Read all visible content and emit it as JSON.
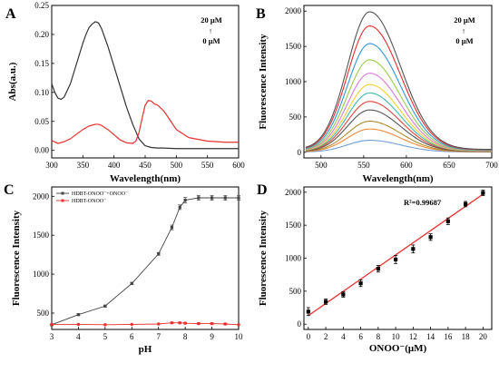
{
  "chart_data": [
    {
      "panel": "A",
      "type": "line",
      "xlabel": "Wavelength(nm)",
      "ylabel": "Abs(a.u.)",
      "xlim": [
        300,
        600
      ],
      "ylim": [
        -0.013,
        0.25
      ],
      "xticks": [
        300,
        350,
        400,
        450,
        500,
        550,
        600
      ],
      "yticks": [
        0.0,
        0.05,
        0.1,
        0.15,
        0.2,
        0.25
      ],
      "ytick_labels": [
        "0.00",
        "0.05",
        "0.10",
        "0.15",
        "0.20",
        "0.25"
      ],
      "annotation": {
        "top": "20 μM",
        "arrow": "↑",
        "bottom": "0 μM"
      },
      "series": [
        {
          "color": "#333333",
          "x": [
            300,
            305,
            310,
            315,
            320,
            330,
            340,
            350,
            355,
            360,
            365,
            370,
            375,
            380,
            385,
            390,
            400,
            410,
            420,
            430,
            440,
            450,
            460,
            470,
            480,
            500,
            550,
            600
          ],
          "y": [
            0.115,
            0.1,
            0.09,
            0.088,
            0.092,
            0.115,
            0.15,
            0.185,
            0.2,
            0.212,
            0.218,
            0.222,
            0.22,
            0.21,
            0.195,
            0.18,
            0.145,
            0.11,
            0.075,
            0.045,
            0.02,
            0.008,
            0.005,
            0.004,
            0.004,
            0.003,
            0.003,
            0.003
          ]
        },
        {
          "color": "#e8302e",
          "x": [
            300,
            310,
            320,
            330,
            340,
            350,
            360,
            370,
            375,
            380,
            390,
            400,
            410,
            420,
            430,
            435,
            440,
            445,
            450,
            455,
            460,
            465,
            470,
            480,
            490,
            500,
            520,
            550,
            580,
            600
          ],
          "y": [
            0.017,
            0.012,
            0.015,
            0.02,
            0.028,
            0.036,
            0.042,
            0.045,
            0.045,
            0.043,
            0.036,
            0.027,
            0.018,
            0.013,
            0.012,
            0.016,
            0.03,
            0.055,
            0.078,
            0.086,
            0.085,
            0.08,
            0.078,
            0.068,
            0.052,
            0.036,
            0.022,
            0.016,
            0.014,
            0.014
          ]
        }
      ]
    },
    {
      "panel": "B",
      "type": "line",
      "xlabel": "Wavelength(nm)",
      "ylabel": "Fluorescence Intensity",
      "xlim": [
        480,
        700
      ],
      "ylim": [
        -80,
        2080
      ],
      "xticks": [
        500,
        550,
        600,
        650,
        700
      ],
      "yticks": [
        0,
        500,
        1000,
        1500,
        2000
      ],
      "annotation": {
        "top": "20 μM",
        "arrow": "↑",
        "bottom": "0 μM"
      },
      "peak_wavelength": 557,
      "start_wavelength": 482,
      "end_wavelength": 700,
      "series": [
        {
          "color": "#6f9fd8",
          "peak": 170
        },
        {
          "color": "#f08a3c",
          "peak": 330
        },
        {
          "color": "#b08a2a",
          "peak": 440
        },
        {
          "color": "#555555",
          "peak": 600
        },
        {
          "color": "#e0453c",
          "peak": 720
        },
        {
          "color": "#3fb8b0",
          "peak": 840
        },
        {
          "color": "#f2d12c",
          "peak": 960
        },
        {
          "color": "#d67bd8",
          "peak": 1120
        },
        {
          "color": "#9acb4a",
          "peak": 1310
        },
        {
          "color": "#2d9ad8",
          "peak": 1540
        },
        {
          "color": "#e8302e",
          "peak": 1790
        },
        {
          "color": "#555555",
          "peak": 1990
        }
      ]
    },
    {
      "panel": "C",
      "type": "line",
      "xlabel": "pH",
      "ylabel": "Fluorescence Intensity",
      "xlim": [
        3,
        10
      ],
      "ylim": [
        290,
        2120
      ],
      "xticks": [
        3,
        4,
        5,
        6,
        7,
        8,
        9,
        10
      ],
      "yticks": [
        500,
        1000,
        1500,
        2000
      ],
      "legend_position": "top-left",
      "series": [
        {
          "name": "HDBT-ONOO⁻+ONOO⁻",
          "color": "#444444",
          "marker": "square",
          "x": [
            3,
            4,
            5,
            6,
            7,
            7.5,
            7.8,
            8,
            8.5,
            9,
            9.5,
            10
          ],
          "y": [
            350,
            480,
            590,
            880,
            1260,
            1600,
            1860,
            1950,
            1980,
            1980,
            1980,
            1980
          ],
          "err": [
            10,
            12,
            12,
            15,
            18,
            30,
            30,
            35,
            30,
            30,
            30,
            30
          ]
        },
        {
          "name": "HDBT-ONOO⁻",
          "color": "#e8302e",
          "marker": "dot",
          "x": [
            3,
            4,
            5,
            6,
            7,
            7.5,
            7.8,
            8,
            8.5,
            9,
            9.5,
            10
          ],
          "y": [
            355,
            355,
            350,
            355,
            360,
            375,
            375,
            370,
            365,
            365,
            360,
            350
          ],
          "err": [
            0,
            0,
            0,
            0,
            0,
            10,
            10,
            10,
            10,
            10,
            10,
            0
          ]
        }
      ]
    },
    {
      "panel": "D",
      "type": "scatter",
      "xlabel": "ONOO⁻(μM)",
      "ylabel": "Fluorescence Intensity",
      "xlim": [
        -0.5,
        21
      ],
      "ylim": [
        -80,
        2080
      ],
      "xticks": [
        0,
        2,
        4,
        6,
        8,
        10,
        12,
        14,
        16,
        18,
        20
      ],
      "yticks": [
        0,
        500,
        1000,
        1500,
        2000
      ],
      "r2_label": "R²=0.99687",
      "points": {
        "x": [
          0,
          2,
          4,
          6,
          8,
          10,
          12,
          14,
          16,
          18,
          20
        ],
        "y": [
          190,
          340,
          450,
          620,
          840,
          980,
          1140,
          1320,
          1560,
          1820,
          1990
        ],
        "err": [
          60,
          40,
          40,
          50,
          50,
          60,
          60,
          50,
          50,
          40,
          40
        ]
      },
      "fit": {
        "x": [
          0,
          20
        ],
        "y": [
          130,
          1970
        ],
        "color": "#e8302e"
      }
    }
  ]
}
